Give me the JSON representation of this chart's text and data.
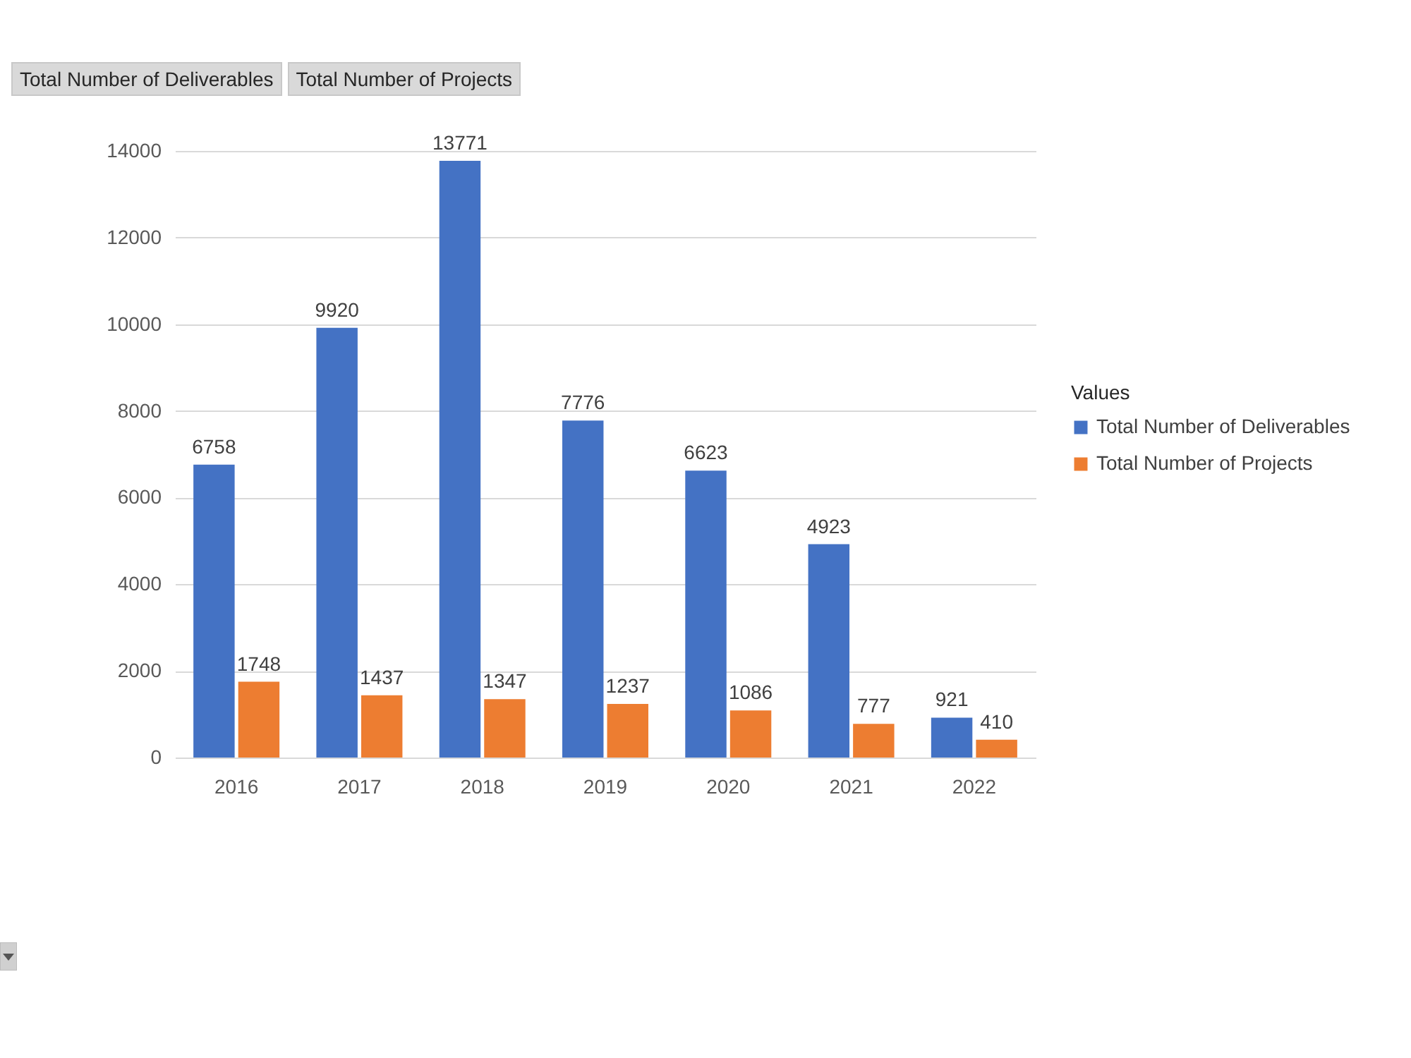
{
  "chart_data": {
    "type": "bar",
    "categories": [
      "2016",
      "2017",
      "2018",
      "2019",
      "2020",
      "2021",
      "2022"
    ],
    "series": [
      {
        "name": "Total Number of Deliverables",
        "color": "#4472c4",
        "values": [
          6758,
          9920,
          13771,
          7776,
          6623,
          4923,
          921
        ]
      },
      {
        "name": "Total Number of Projects",
        "color": "#ed7d31",
        "values": [
          1748,
          1437,
          1347,
          1237,
          1086,
          777,
          410
        ]
      }
    ],
    "ylim": [
      0,
      14000
    ],
    "yticks": [
      0,
      2000,
      4000,
      6000,
      8000,
      10000,
      12000,
      14000
    ],
    "grid": "y",
    "legend": "right",
    "legend_title": "Values",
    "data_labels": true,
    "annotations": [
      "Total Number of Deliverables",
      "Total Number of Projects"
    ]
  }
}
